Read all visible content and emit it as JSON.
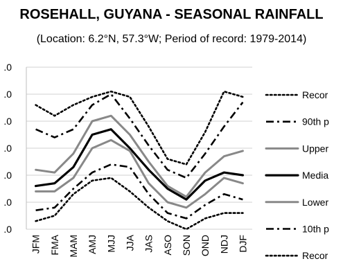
{
  "chart_data": {
    "type": "line",
    "title": "ROSEHALL, GUYANA - SEASONAL RAINFALL",
    "subtitle": "(Location: 6.2°N, 57.3°W; Period of record: 1979-2014)",
    "xlabel": "",
    "ylabel": "",
    "categories": [
      "JFM",
      "FMA",
      "MAM",
      "AMJ",
      "MJJ",
      "JJA",
      "JAS",
      "ASO",
      "SON",
      "OND",
      "NDJ",
      "DJF"
    ],
    "y_ticks": [
      ".0",
      ".0",
      ".0",
      ".0",
      ".0",
      ".0",
      ".0"
    ],
    "ylim": [
      0,
      6
    ],
    "grid": "horizontal",
    "legend_position": "right",
    "series": [
      {
        "name": "Recor",
        "style": "dotted",
        "color": "#000000",
        "values": [
          4.6,
          4.2,
          4.6,
          4.9,
          5.1,
          4.9,
          3.8,
          2.6,
          2.4,
          3.6,
          5.1,
          4.9
        ]
      },
      {
        "name": "90th p",
        "style": "dashdot",
        "color": "#000000",
        "values": [
          3.7,
          3.4,
          3.7,
          4.6,
          5.0,
          4.1,
          3.1,
          2.2,
          1.9,
          2.8,
          3.8,
          4.7
        ]
      },
      {
        "name": "Upper",
        "style": "solid",
        "color": "#888888",
        "values": [
          2.2,
          2.1,
          2.8,
          4.0,
          4.2,
          3.5,
          2.5,
          1.6,
          1.2,
          2.1,
          2.7,
          2.9
        ]
      },
      {
        "name": "Media",
        "style": "solid-thick",
        "color": "#000000",
        "values": [
          1.6,
          1.7,
          2.3,
          3.5,
          3.7,
          3.0,
          2.2,
          1.5,
          1.1,
          1.8,
          2.1,
          2.0
        ]
      },
      {
        "name": "Lower",
        "style": "solid",
        "color": "#888888",
        "values": [
          1.4,
          1.4,
          1.9,
          3.0,
          3.3,
          2.9,
          1.7,
          1.0,
          0.8,
          1.3,
          1.9,
          1.7
        ]
      },
      {
        "name": "10th p",
        "style": "dashdot",
        "color": "#000000",
        "values": [
          0.7,
          0.8,
          1.5,
          2.1,
          2.4,
          2.3,
          1.3,
          0.6,
          0.4,
          0.9,
          1.3,
          1.1
        ]
      },
      {
        "name": "Recor",
        "style": "dotted",
        "color": "#000000",
        "values": [
          0.3,
          0.5,
          1.3,
          1.8,
          1.9,
          1.4,
          0.8,
          0.3,
          0.0,
          0.4,
          0.6,
          0.6
        ]
      }
    ]
  }
}
